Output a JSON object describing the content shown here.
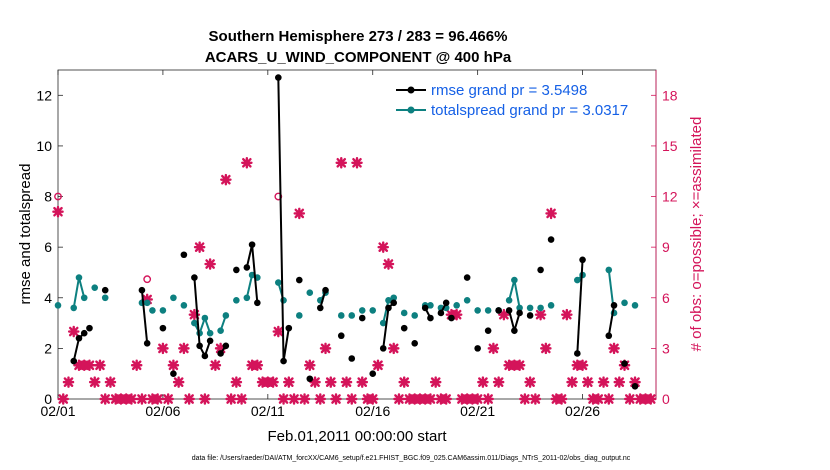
{
  "chart_data": {
    "type": "line",
    "title_line1": "Southern Hemisphere 273 / 283 = 96.466%",
    "title_line2": "ACARS_U_WIND_COMPONENT @ 400 hPa",
    "xlabel": "Feb.01,2011 00:00:00 start",
    "ylabel_left": "rmse and totalspread",
    "ylabel_right": "# of obs: o=possible; ×=assimilated",
    "x_tick_labels": [
      "02/01",
      "02/06",
      "02/11",
      "02/16",
      "02/21",
      "02/26"
    ],
    "x_tick_values": [
      0,
      5,
      10,
      15,
      20,
      25
    ],
    "xlim": [
      0,
      28.5
    ],
    "ylim_left": [
      0,
      13
    ],
    "ylim_right": [
      0,
      19.5
    ],
    "y_ticks_left": [
      0,
      2,
      4,
      6,
      8,
      10,
      12
    ],
    "y_ticks_right": [
      0,
      3,
      6,
      9,
      12,
      15,
      18
    ],
    "legend": [
      "rmse grand pr = 3.5498",
      "totalspread grand pr = 3.0317"
    ],
    "colors": {
      "rmse": "#000000",
      "spread": "#0d8080",
      "obs": "#d4145a",
      "legend_text": "#1560e6",
      "right_axis": "#d4145a"
    },
    "series": [
      {
        "name": "rmse",
        "segments": [
          [
            [
              0.75,
              1.5
            ],
            [
              1.0,
              2.4
            ],
            [
              1.25,
              2.6
            ]
          ],
          [
            [
              1.5,
              2.8
            ]
          ],
          [
            [
              2.25,
              4.3
            ]
          ],
          [
            [
              4.0,
              4.3
            ],
            [
              4.25,
              2.2
            ]
          ],
          [
            [
              5.0,
              2.8
            ]
          ],
          [
            [
              5.5,
              1.0
            ]
          ],
          [
            [
              6.0,
              5.7
            ]
          ],
          [
            [
              6.5,
              4.8
            ],
            [
              6.75,
              2.1
            ],
            [
              7.0,
              1.7
            ],
            [
              7.25,
              2.3
            ]
          ],
          [
            [
              7.75,
              1.8
            ],
            [
              8.0,
              2.1
            ]
          ],
          [
            [
              8.5,
              5.1
            ]
          ],
          [
            [
              9.0,
              5.2
            ],
            [
              9.25,
              6.1
            ],
            [
              9.5,
              3.8
            ]
          ],
          [
            [
              10.5,
              12.7
            ],
            [
              10.75,
              1.5
            ],
            [
              11.0,
              2.8
            ]
          ],
          [
            [
              11.5,
              4.7
            ]
          ],
          [
            [
              12.0,
              0.8
            ]
          ],
          [
            [
              12.5,
              3.6
            ],
            [
              12.75,
              4.3
            ]
          ],
          [
            [
              13.5,
              2.5
            ]
          ],
          [
            [
              14.0,
              1.6
            ]
          ],
          [
            [
              14.5,
              3.2
            ]
          ],
          [
            [
              15.0,
              1.0
            ]
          ],
          [
            [
              15.5,
              2.0
            ],
            [
              15.75,
              3.6
            ],
            [
              16.0,
              3.8
            ]
          ],
          [
            [
              16.5,
              2.8
            ]
          ],
          [
            [
              17.0,
              2.2
            ]
          ],
          [
            [
              17.5,
              3.6
            ],
            [
              17.75,
              3.2
            ]
          ],
          [
            [
              18.25,
              3.4
            ],
            [
              18.5,
              3.8
            ]
          ],
          [
            [
              18.75,
              3.2
            ]
          ],
          [
            [
              19.5,
              4.8
            ]
          ],
          [
            [
              20.0,
              2.0
            ]
          ],
          [
            [
              20.5,
              2.7
            ]
          ],
          [
            [
              21.0,
              3.5
            ]
          ],
          [
            [
              21.5,
              3.5
            ],
            [
              21.75,
              2.7
            ],
            [
              22.0,
              3.4
            ]
          ],
          [
            [
              22.5,
              3.3
            ]
          ],
          [
            [
              23.0,
              5.1
            ]
          ],
          [
            [
              23.5,
              6.3
            ]
          ],
          [
            [
              24.75,
              1.8
            ],
            [
              25.0,
              5.5
            ]
          ],
          [
            [
              26.25,
              2.5
            ],
            [
              26.5,
              3.7
            ]
          ],
          [
            [
              27.0,
              1.4
            ]
          ],
          [
            [
              27.5,
              0.5
            ]
          ]
        ]
      },
      {
        "name": "totalspread",
        "segments": [
          [
            [
              0.0,
              3.7
            ]
          ],
          [
            [
              0.75,
              3.6
            ],
            [
              1.0,
              4.8
            ],
            [
              1.25,
              4.0
            ]
          ],
          [
            [
              1.75,
              4.4
            ]
          ],
          [
            [
              2.25,
              4.0
            ]
          ],
          [
            [
              4.0,
              3.8
            ],
            [
              4.25,
              3.8
            ]
          ],
          [
            [
              4.5,
              3.5
            ]
          ],
          [
            [
              5.0,
              3.5
            ]
          ],
          [
            [
              5.5,
              4.0
            ]
          ],
          [
            [
              6.0,
              3.7
            ]
          ],
          [
            [
              6.5,
              3.0
            ],
            [
              6.75,
              2.6
            ],
            [
              7.0,
              3.2
            ],
            [
              7.25,
              2.6
            ]
          ],
          [
            [
              7.75,
              2.7
            ],
            [
              8.0,
              3.3
            ]
          ],
          [
            [
              8.5,
              3.9
            ]
          ],
          [
            [
              9.0,
              4.0
            ],
            [
              9.25,
              4.9
            ],
            [
              9.5,
              4.8
            ]
          ],
          [
            [
              10.5,
              4.6
            ],
            [
              10.75,
              3.9
            ]
          ],
          [
            [
              11.5,
              3.3
            ]
          ],
          [
            [
              12.0,
              4.2
            ]
          ],
          [
            [
              12.5,
              3.9
            ],
            [
              12.75,
              4.2
            ]
          ],
          [
            [
              13.5,
              3.3
            ]
          ],
          [
            [
              14.0,
              3.3
            ]
          ],
          [
            [
              14.5,
              3.5
            ]
          ],
          [
            [
              15.0,
              3.5
            ]
          ],
          [
            [
              15.5,
              3.0
            ],
            [
              15.75,
              3.9
            ],
            [
              16.0,
              4.0
            ]
          ],
          [
            [
              16.5,
              3.4
            ]
          ],
          [
            [
              17.0,
              3.3
            ]
          ],
          [
            [
              17.5,
              3.7
            ],
            [
              17.75,
              3.7
            ]
          ],
          [
            [
              18.25,
              3.6
            ],
            [
              18.5,
              3.6
            ]
          ],
          [
            [
              19.0,
              3.7
            ]
          ],
          [
            [
              19.5,
              3.9
            ]
          ],
          [
            [
              20.0,
              3.5
            ]
          ],
          [
            [
              20.5,
              3.5
            ]
          ],
          [
            [
              21.0,
              3.5
            ]
          ],
          [
            [
              21.5,
              3.9
            ],
            [
              21.75,
              4.7
            ],
            [
              22.0,
              3.6
            ]
          ],
          [
            [
              22.5,
              3.6
            ]
          ],
          [
            [
              23.0,
              3.6
            ]
          ],
          [
            [
              23.5,
              3.7
            ]
          ],
          [
            [
              24.75,
              4.7
            ],
            [
              25.0,
              4.9
            ]
          ],
          [
            [
              26.25,
              5.1
            ],
            [
              26.5,
              3.4
            ]
          ],
          [
            [
              27.0,
              3.8
            ]
          ],
          [
            [
              27.5,
              3.7
            ]
          ]
        ]
      }
    ],
    "obs_possible": [
      {
        "x": 0.0,
        "y": 12.0
      },
      {
        "x": 4.25,
        "y": 7.1
      },
      {
        "x": 10.5,
        "y": 12.0
      }
    ],
    "obs_assimilated": [
      {
        "x": 0.0,
        "y": 11.1
      },
      {
        "x": 0.25,
        "y": 0
      },
      {
        "x": 0.5,
        "y": 1
      },
      {
        "x": 0.75,
        "y": 4
      },
      {
        "x": 1.0,
        "y": 2
      },
      {
        "x": 1.25,
        "y": 2
      },
      {
        "x": 1.5,
        "y": 2
      },
      {
        "x": 1.75,
        "y": 1
      },
      {
        "x": 2.0,
        "y": 2
      },
      {
        "x": 2.25,
        "y": 0
      },
      {
        "x": 2.5,
        "y": 1
      },
      {
        "x": 2.75,
        "y": 0
      },
      {
        "x": 3.0,
        "y": 0
      },
      {
        "x": 3.25,
        "y": 0
      },
      {
        "x": 3.5,
        "y": 0
      },
      {
        "x": 3.75,
        "y": 2
      },
      {
        "x": 4.0,
        "y": 0
      },
      {
        "x": 4.25,
        "y": 5.9
      },
      {
        "x": 4.5,
        "y": 0
      },
      {
        "x": 4.75,
        "y": 0
      },
      {
        "x": 5.0,
        "y": 3
      },
      {
        "x": 5.25,
        "y": 0
      },
      {
        "x": 5.5,
        "y": 2
      },
      {
        "x": 5.75,
        "y": 1
      },
      {
        "x": 6.0,
        "y": 3
      },
      {
        "x": 6.25,
        "y": 0
      },
      {
        "x": 6.5,
        "y": 5
      },
      {
        "x": 6.75,
        "y": 9
      },
      {
        "x": 7.0,
        "y": 0
      },
      {
        "x": 7.25,
        "y": 8
      },
      {
        "x": 7.5,
        "y": 2
      },
      {
        "x": 7.75,
        "y": 3
      },
      {
        "x": 8.0,
        "y": 13
      },
      {
        "x": 8.25,
        "y": 0
      },
      {
        "x": 8.5,
        "y": 1
      },
      {
        "x": 8.75,
        "y": 0
      },
      {
        "x": 9.0,
        "y": 14
      },
      {
        "x": 9.25,
        "y": 2
      },
      {
        "x": 9.5,
        "y": 2
      },
      {
        "x": 9.75,
        "y": 1
      },
      {
        "x": 10.0,
        "y": 1
      },
      {
        "x": 10.25,
        "y": 1
      },
      {
        "x": 10.5,
        "y": 4
      },
      {
        "x": 10.75,
        "y": 0
      },
      {
        "x": 11.0,
        "y": 1
      },
      {
        "x": 11.25,
        "y": 0
      },
      {
        "x": 11.5,
        "y": 11
      },
      {
        "x": 11.75,
        "y": 0
      },
      {
        "x": 12.0,
        "y": 2
      },
      {
        "x": 12.25,
        "y": 1
      },
      {
        "x": 12.5,
        "y": 0
      },
      {
        "x": 12.75,
        "y": 3
      },
      {
        "x": 13.0,
        "y": 1
      },
      {
        "x": 13.25,
        "y": 0
      },
      {
        "x": 13.5,
        "y": 14
      },
      {
        "x": 13.75,
        "y": 1
      },
      {
        "x": 14.0,
        "y": 0
      },
      {
        "x": 14.25,
        "y": 14
      },
      {
        "x": 14.5,
        "y": 1
      },
      {
        "x": 14.75,
        "y": 0
      },
      {
        "x": 15.0,
        "y": 0
      },
      {
        "x": 15.25,
        "y": 2
      },
      {
        "x": 15.5,
        "y": 9
      },
      {
        "x": 15.75,
        "y": 8
      },
      {
        "x": 16.0,
        "y": 3
      },
      {
        "x": 16.25,
        "y": 0
      },
      {
        "x": 16.5,
        "y": 1
      },
      {
        "x": 16.75,
        "y": 0
      },
      {
        "x": 17.0,
        "y": 0
      },
      {
        "x": 17.25,
        "y": 0
      },
      {
        "x": 17.5,
        "y": 0
      },
      {
        "x": 17.75,
        "y": 0
      },
      {
        "x": 18.0,
        "y": 1
      },
      {
        "x": 18.25,
        "y": 0
      },
      {
        "x": 18.5,
        "y": 0
      },
      {
        "x": 18.75,
        "y": 5
      },
      {
        "x": 19.0,
        "y": 5
      },
      {
        "x": 19.25,
        "y": 0
      },
      {
        "x": 19.5,
        "y": 0
      },
      {
        "x": 19.75,
        "y": 0
      },
      {
        "x": 20.0,
        "y": 0
      },
      {
        "x": 20.25,
        "y": 1
      },
      {
        "x": 20.5,
        "y": 0
      },
      {
        "x": 20.75,
        "y": 3
      },
      {
        "x": 21.0,
        "y": 1
      },
      {
        "x": 21.25,
        "y": 5
      },
      {
        "x": 21.5,
        "y": 2
      },
      {
        "x": 21.75,
        "y": 2
      },
      {
        "x": 22.0,
        "y": 2
      },
      {
        "x": 22.25,
        "y": 0
      },
      {
        "x": 22.5,
        "y": 1
      },
      {
        "x": 22.75,
        "y": 0
      },
      {
        "x": 23.0,
        "y": 5
      },
      {
        "x": 23.25,
        "y": 3
      },
      {
        "x": 23.5,
        "y": 11
      },
      {
        "x": 23.75,
        "y": 0
      },
      {
        "x": 24.0,
        "y": 0
      },
      {
        "x": 24.25,
        "y": 5
      },
      {
        "x": 24.5,
        "y": 1
      },
      {
        "x": 24.75,
        "y": 2
      },
      {
        "x": 25.0,
        "y": 2
      },
      {
        "x": 25.25,
        "y": 1
      },
      {
        "x": 25.5,
        "y": 0
      },
      {
        "x": 25.75,
        "y": 0
      },
      {
        "x": 26.0,
        "y": 1
      },
      {
        "x": 26.25,
        "y": 0
      },
      {
        "x": 26.5,
        "y": 3
      },
      {
        "x": 26.75,
        "y": 1
      },
      {
        "x": 27.0,
        "y": 2
      },
      {
        "x": 27.25,
        "y": 0
      },
      {
        "x": 27.5,
        "y": 1
      },
      {
        "x": 27.75,
        "y": 0
      },
      {
        "x": 28.0,
        "y": 0
      },
      {
        "x": 28.25,
        "y": 0
      }
    ]
  },
  "footer": "data file: /Users/raeder/DAI/ATM_forcXX/CAM6_setup/f.e21.FHIST_BGC.f09_025.CAM6assim.011/Diags_NTrS_2011-02/obs_diag_output.nc"
}
